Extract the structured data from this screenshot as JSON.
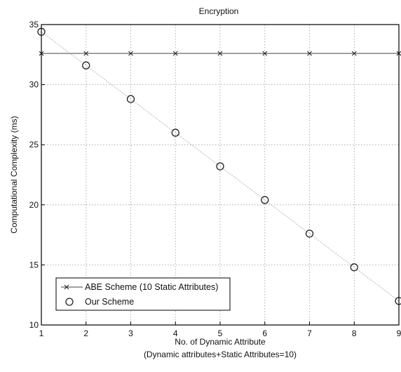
{
  "colors": {
    "line": "#6a6a6a",
    "trend": "#c4c4c4",
    "marker": "#222222",
    "frame": "#000000",
    "grid": "#9a9a9a"
  },
  "chart_data": {
    "type": "line",
    "title": "Encryption",
    "xlabel": "No. of Dynamic Attribute",
    "xlabel_sub": "(Dynamic attributes+Static Attributes=10)",
    "ylabel": "Computational Complexity (ms)",
    "xlim": [
      1,
      9
    ],
    "ylim": [
      10,
      35
    ],
    "x_ticks": [
      1,
      2,
      3,
      4,
      5,
      6,
      7,
      8,
      9
    ],
    "y_ticks": [
      10,
      15,
      20,
      25,
      30,
      35
    ],
    "grid": true,
    "legend_position": "bottom-left",
    "series": [
      {
        "name": "ABE Scheme (10 Static Attributes)",
        "marker": "x",
        "x": [
          1,
          2,
          3,
          4,
          5,
          6,
          7,
          8,
          9
        ],
        "values": [
          32.6,
          32.6,
          32.6,
          32.6,
          32.6,
          32.6,
          32.6,
          32.6,
          32.6
        ]
      },
      {
        "name": "Our Scheme",
        "marker": "o",
        "x": [
          1,
          2,
          3,
          4,
          5,
          6,
          7,
          8,
          9
        ],
        "values": [
          34.4,
          31.6,
          28.8,
          26.0,
          23.2,
          20.4,
          17.6,
          14.8,
          12.0
        ]
      }
    ]
  }
}
